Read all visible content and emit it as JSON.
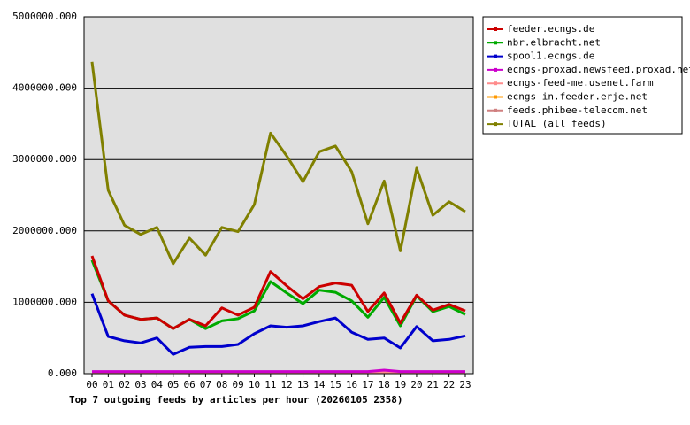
{
  "chart_data": {
    "type": "line",
    "title": "Top 7 outgoing feeds by articles per hour (20260105 2358)",
    "categories": [
      "00",
      "01",
      "02",
      "03",
      "04",
      "05",
      "06",
      "07",
      "08",
      "09",
      "10",
      "11",
      "12",
      "13",
      "14",
      "15",
      "16",
      "17",
      "18",
      "19",
      "20",
      "21",
      "22",
      "23"
    ],
    "ylim": [
      0,
      5000000
    ],
    "yticks": [
      {
        "value": 0,
        "label": "0.000"
      },
      {
        "value": 1000000,
        "label": "1000000.000"
      },
      {
        "value": 2000000,
        "label": "2000000.000"
      },
      {
        "value": 3000000,
        "label": "3000000.000"
      },
      {
        "value": 4000000,
        "label": "4000000.000"
      },
      {
        "value": 5000000,
        "label": "5000000.000"
      }
    ],
    "grid": true,
    "legend": "right",
    "series": [
      {
        "name": "feeder.ecngs.de",
        "color": "#cc0000",
        "values": [
          1650000,
          1020000,
          820000,
          760000,
          780000,
          630000,
          760000,
          670000,
          920000,
          820000,
          930000,
          1430000,
          1230000,
          1050000,
          1220000,
          1270000,
          1240000,
          870000,
          1130000,
          710000,
          1100000,
          890000,
          970000,
          880000
        ]
      },
      {
        "name": "nbr.elbracht.net",
        "color": "#00aa00",
        "values": [
          1590000,
          1020000,
          820000,
          760000,
          780000,
          630000,
          760000,
          630000,
          740000,
          770000,
          880000,
          1290000,
          1130000,
          980000,
          1170000,
          1140000,
          1020000,
          790000,
          1070000,
          670000,
          1090000,
          870000,
          940000,
          830000
        ]
      },
      {
        "name": "spool1.ecngs.de",
        "color": "#0000cc",
        "values": [
          1120000,
          520000,
          460000,
          430000,
          500000,
          270000,
          370000,
          380000,
          380000,
          410000,
          560000,
          670000,
          650000,
          670000,
          730000,
          780000,
          580000,
          480000,
          500000,
          360000,
          660000,
          460000,
          480000,
          530000
        ]
      },
      {
        "name": "ecngs-proxad.newsfeed.proxad.net",
        "color": "#cc00cc",
        "values": [
          30000,
          30000,
          30000,
          30000,
          30000,
          30000,
          30000,
          30000,
          30000,
          30000,
          30000,
          30000,
          30000,
          30000,
          30000,
          30000,
          30000,
          30000,
          50000,
          30000,
          30000,
          30000,
          30000,
          30000
        ]
      },
      {
        "name": "ecngs-feed-me.usenet.farm",
        "color": "#ff8c8c",
        "values": [
          25000,
          25000,
          25000,
          25000,
          25000,
          25000,
          25000,
          25000,
          25000,
          25000,
          25000,
          25000,
          25000,
          25000,
          25000,
          25000,
          25000,
          25000,
          25000,
          25000,
          25000,
          25000,
          25000,
          25000
        ]
      },
      {
        "name": "ecngs-in.feeder.erje.net",
        "color": "#ff9900",
        "values": [
          20000,
          20000,
          20000,
          20000,
          20000,
          20000,
          20000,
          20000,
          20000,
          20000,
          20000,
          20000,
          20000,
          20000,
          20000,
          20000,
          20000,
          20000,
          20000,
          20000,
          20000,
          20000,
          20000,
          20000
        ]
      },
      {
        "name": "feeds.phibee-telecom.net",
        "color": "#d08080",
        "values": [
          25000,
          25000,
          25000,
          25000,
          25000,
          25000,
          25000,
          25000,
          25000,
          25000,
          25000,
          25000,
          25000,
          25000,
          25000,
          25000,
          25000,
          25000,
          25000,
          25000,
          25000,
          25000,
          25000,
          25000
        ]
      },
      {
        "name": "TOTAL (all feeds)",
        "color": "#808000",
        "values": [
          4370000,
          2570000,
          2080000,
          1950000,
          2050000,
          1540000,
          1900000,
          1660000,
          2050000,
          1990000,
          2370000,
          3370000,
          3050000,
          2690000,
          3110000,
          3190000,
          2830000,
          2100000,
          2700000,
          1720000,
          2880000,
          2220000,
          2410000,
          2270000
        ]
      }
    ]
  }
}
